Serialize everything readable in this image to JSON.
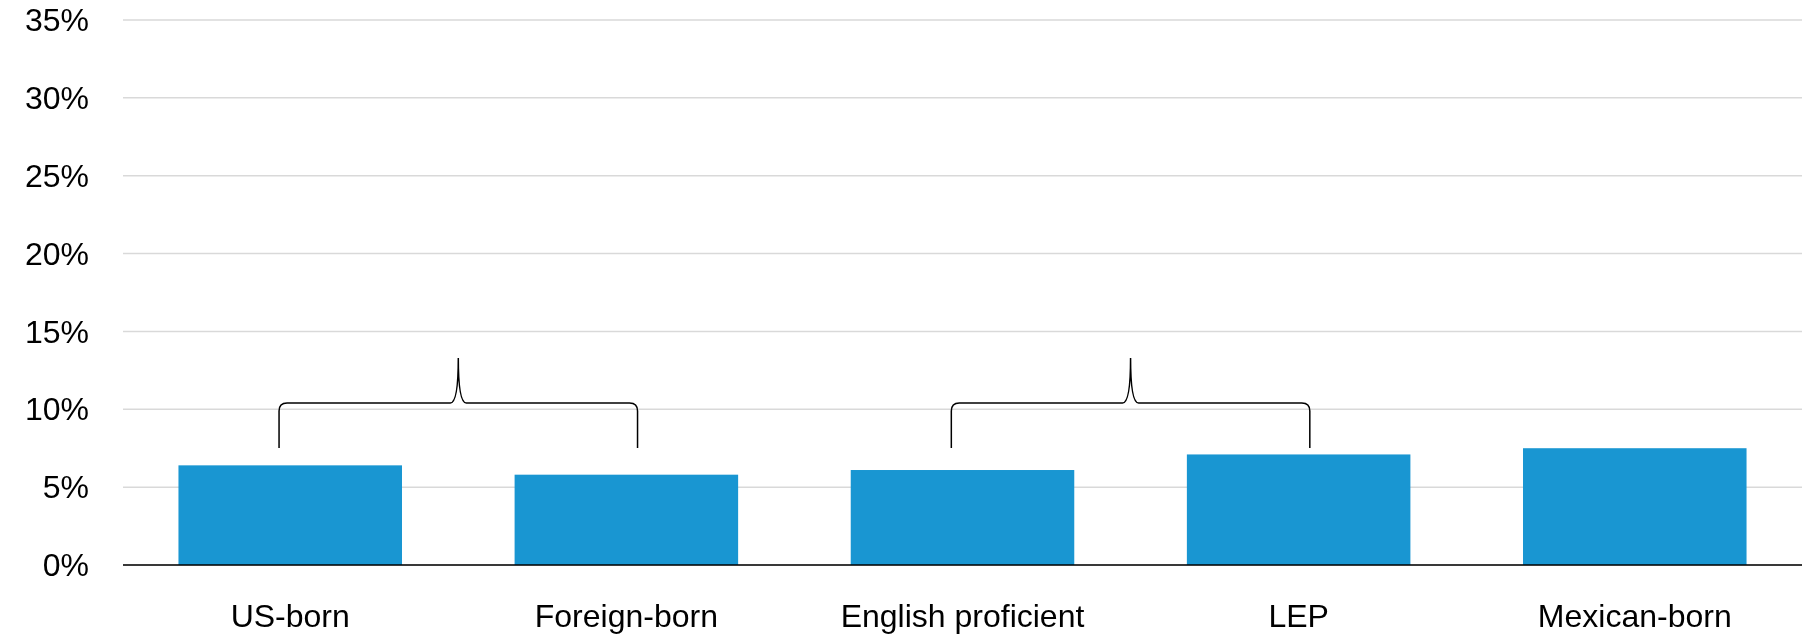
{
  "chart_data": {
    "type": "bar",
    "categories": [
      "US-born",
      "Foreign-born",
      "English proficient",
      "LEP",
      "Mexican-born"
    ],
    "values": [
      6.4,
      5.8,
      6.1,
      7.1,
      7.5
    ],
    "color": "#1996d2",
    "ylim": [
      0,
      35
    ],
    "yticks": [
      {
        "value": 0,
        "label": "0%"
      },
      {
        "value": 5,
        "label": "5%"
      },
      {
        "value": 10,
        "label": "10%"
      },
      {
        "value": 15,
        "label": "15%"
      },
      {
        "value": 20,
        "label": "20%"
      },
      {
        "value": 25,
        "label": "25%"
      },
      {
        "value": 30,
        "label": "30%"
      },
      {
        "value": 35,
        "label": "35%"
      }
    ],
    "grid": "y"
  }
}
